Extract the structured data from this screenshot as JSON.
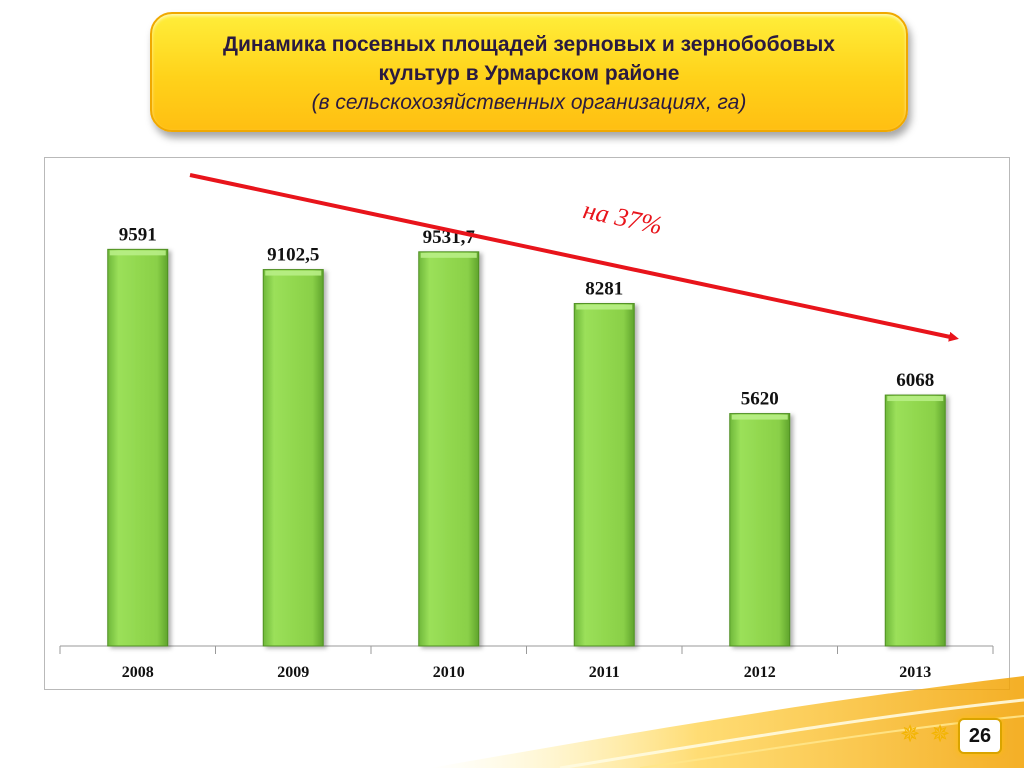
{
  "header": {
    "title_line1": "Динамика посевных площадей зерновых и зернобобовых",
    "title_line2": "культур в Урмарском районе",
    "subtitle": "(в сельскохозяйственных организациях, га)"
  },
  "chart_data": {
    "type": "bar",
    "categories": [
      "2008",
      "2009",
      "2010",
      "2011",
      "2012",
      "2013"
    ],
    "values": [
      9591,
      9102.5,
      9531.7,
      8281,
      5620,
      6068
    ],
    "value_labels": [
      "9591",
      "9102,5",
      "9531,7",
      "8281",
      "5620",
      "6068"
    ],
    "ylim": [
      0,
      11800
    ],
    "grid": false,
    "bar_color": "#8fd14f",
    "trend": {
      "label": "на 37%",
      "color": "#e8141b",
      "direction": "down"
    }
  },
  "footer": {
    "page_number": "26"
  },
  "colors": {
    "accent": "#ffd21a",
    "badge_border": "#d9a400"
  },
  "icons": [
    "star-icon",
    "star-icon"
  ]
}
